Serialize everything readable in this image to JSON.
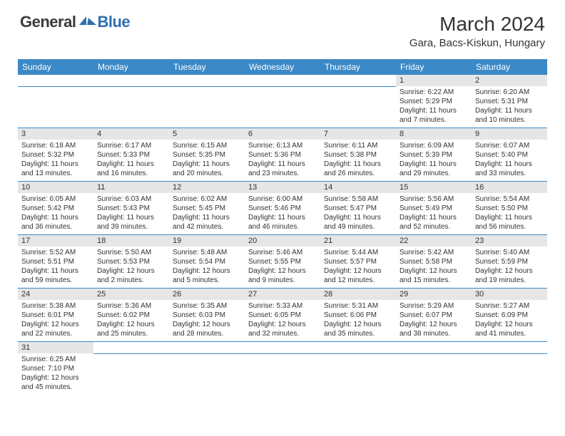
{
  "logo": {
    "word1": "General",
    "word2": "Blue"
  },
  "title": "March 2024",
  "location": "Gara, Bacs-Kiskun, Hungary",
  "colors": {
    "header_bg": "#3b89c7",
    "header_text": "#ffffff",
    "daynum_bg": "#e6e6e6",
    "row_border": "#3b89c7",
    "logo_gray": "#3a3a3a",
    "logo_blue": "#2f6fb0"
  },
  "weekdays": [
    "Sunday",
    "Monday",
    "Tuesday",
    "Wednesday",
    "Thursday",
    "Friday",
    "Saturday"
  ],
  "weeks": [
    [
      null,
      null,
      null,
      null,
      null,
      {
        "day": "1",
        "sunrise": "Sunrise: 6:22 AM",
        "sunset": "Sunset: 5:29 PM",
        "daylight": "Daylight: 11 hours and 7 minutes."
      },
      {
        "day": "2",
        "sunrise": "Sunrise: 6:20 AM",
        "sunset": "Sunset: 5:31 PM",
        "daylight": "Daylight: 11 hours and 10 minutes."
      }
    ],
    [
      {
        "day": "3",
        "sunrise": "Sunrise: 6:18 AM",
        "sunset": "Sunset: 5:32 PM",
        "daylight": "Daylight: 11 hours and 13 minutes."
      },
      {
        "day": "4",
        "sunrise": "Sunrise: 6:17 AM",
        "sunset": "Sunset: 5:33 PM",
        "daylight": "Daylight: 11 hours and 16 minutes."
      },
      {
        "day": "5",
        "sunrise": "Sunrise: 6:15 AM",
        "sunset": "Sunset: 5:35 PM",
        "daylight": "Daylight: 11 hours and 20 minutes."
      },
      {
        "day": "6",
        "sunrise": "Sunrise: 6:13 AM",
        "sunset": "Sunset: 5:36 PM",
        "daylight": "Daylight: 11 hours and 23 minutes."
      },
      {
        "day": "7",
        "sunrise": "Sunrise: 6:11 AM",
        "sunset": "Sunset: 5:38 PM",
        "daylight": "Daylight: 11 hours and 26 minutes."
      },
      {
        "day": "8",
        "sunrise": "Sunrise: 6:09 AM",
        "sunset": "Sunset: 5:39 PM",
        "daylight": "Daylight: 11 hours and 29 minutes."
      },
      {
        "day": "9",
        "sunrise": "Sunrise: 6:07 AM",
        "sunset": "Sunset: 5:40 PM",
        "daylight": "Daylight: 11 hours and 33 minutes."
      }
    ],
    [
      {
        "day": "10",
        "sunrise": "Sunrise: 6:05 AM",
        "sunset": "Sunset: 5:42 PM",
        "daylight": "Daylight: 11 hours and 36 minutes."
      },
      {
        "day": "11",
        "sunrise": "Sunrise: 6:03 AM",
        "sunset": "Sunset: 5:43 PM",
        "daylight": "Daylight: 11 hours and 39 minutes."
      },
      {
        "day": "12",
        "sunrise": "Sunrise: 6:02 AM",
        "sunset": "Sunset: 5:45 PM",
        "daylight": "Daylight: 11 hours and 42 minutes."
      },
      {
        "day": "13",
        "sunrise": "Sunrise: 6:00 AM",
        "sunset": "Sunset: 5:46 PM",
        "daylight": "Daylight: 11 hours and 46 minutes."
      },
      {
        "day": "14",
        "sunrise": "Sunrise: 5:58 AM",
        "sunset": "Sunset: 5:47 PM",
        "daylight": "Daylight: 11 hours and 49 minutes."
      },
      {
        "day": "15",
        "sunrise": "Sunrise: 5:56 AM",
        "sunset": "Sunset: 5:49 PM",
        "daylight": "Daylight: 11 hours and 52 minutes."
      },
      {
        "day": "16",
        "sunrise": "Sunrise: 5:54 AM",
        "sunset": "Sunset: 5:50 PM",
        "daylight": "Daylight: 11 hours and 56 minutes."
      }
    ],
    [
      {
        "day": "17",
        "sunrise": "Sunrise: 5:52 AM",
        "sunset": "Sunset: 5:51 PM",
        "daylight": "Daylight: 11 hours and 59 minutes."
      },
      {
        "day": "18",
        "sunrise": "Sunrise: 5:50 AM",
        "sunset": "Sunset: 5:53 PM",
        "daylight": "Daylight: 12 hours and 2 minutes."
      },
      {
        "day": "19",
        "sunrise": "Sunrise: 5:48 AM",
        "sunset": "Sunset: 5:54 PM",
        "daylight": "Daylight: 12 hours and 5 minutes."
      },
      {
        "day": "20",
        "sunrise": "Sunrise: 5:46 AM",
        "sunset": "Sunset: 5:55 PM",
        "daylight": "Daylight: 12 hours and 9 minutes."
      },
      {
        "day": "21",
        "sunrise": "Sunrise: 5:44 AM",
        "sunset": "Sunset: 5:57 PM",
        "daylight": "Daylight: 12 hours and 12 minutes."
      },
      {
        "day": "22",
        "sunrise": "Sunrise: 5:42 AM",
        "sunset": "Sunset: 5:58 PM",
        "daylight": "Daylight: 12 hours and 15 minutes."
      },
      {
        "day": "23",
        "sunrise": "Sunrise: 5:40 AM",
        "sunset": "Sunset: 5:59 PM",
        "daylight": "Daylight: 12 hours and 19 minutes."
      }
    ],
    [
      {
        "day": "24",
        "sunrise": "Sunrise: 5:38 AM",
        "sunset": "Sunset: 6:01 PM",
        "daylight": "Daylight: 12 hours and 22 minutes."
      },
      {
        "day": "25",
        "sunrise": "Sunrise: 5:36 AM",
        "sunset": "Sunset: 6:02 PM",
        "daylight": "Daylight: 12 hours and 25 minutes."
      },
      {
        "day": "26",
        "sunrise": "Sunrise: 5:35 AM",
        "sunset": "Sunset: 6:03 PM",
        "daylight": "Daylight: 12 hours and 28 minutes."
      },
      {
        "day": "27",
        "sunrise": "Sunrise: 5:33 AM",
        "sunset": "Sunset: 6:05 PM",
        "daylight": "Daylight: 12 hours and 32 minutes."
      },
      {
        "day": "28",
        "sunrise": "Sunrise: 5:31 AM",
        "sunset": "Sunset: 6:06 PM",
        "daylight": "Daylight: 12 hours and 35 minutes."
      },
      {
        "day": "29",
        "sunrise": "Sunrise: 5:29 AM",
        "sunset": "Sunset: 6:07 PM",
        "daylight": "Daylight: 12 hours and 38 minutes."
      },
      {
        "day": "30",
        "sunrise": "Sunrise: 5:27 AM",
        "sunset": "Sunset: 6:09 PM",
        "daylight": "Daylight: 12 hours and 41 minutes."
      }
    ],
    [
      {
        "day": "31",
        "sunrise": "Sunrise: 6:25 AM",
        "sunset": "Sunset: 7:10 PM",
        "daylight": "Daylight: 12 hours and 45 minutes."
      },
      null,
      null,
      null,
      null,
      null,
      null
    ]
  ]
}
